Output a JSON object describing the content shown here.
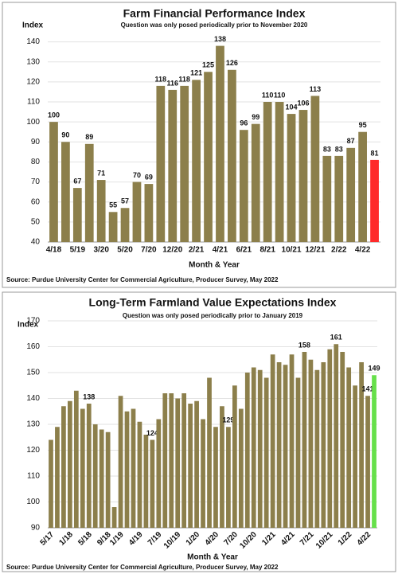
{
  "chart_data": [
    {
      "type": "bar",
      "title": "Farm Financial Performance Index",
      "subtitle": "Question was only posed periodically prior to November 2020",
      "y_label": "Index",
      "x_label": "Month & Year",
      "source": "Source: Purdue University Center for Commercial Agriculture, Producer Survey, May 2022",
      "categories": [
        "4/18",
        null,
        "5/19",
        null,
        "3/20",
        null,
        "5/20",
        null,
        "7/20",
        null,
        "12/20",
        null,
        "2/21",
        null,
        "4/21",
        null,
        "6/21",
        null,
        "8/21",
        null,
        "10/21",
        null,
        "12/21",
        null,
        "2/22",
        null,
        "4/22",
        null
      ],
      "values": [
        100,
        90,
        67,
        89,
        71,
        55,
        57,
        70,
        69,
        118,
        116,
        118,
        121,
        125,
        138,
        126,
        96,
        99,
        110,
        110,
        104,
        106,
        113,
        83,
        83,
        87,
        95,
        81
      ],
      "color": "#8c7f4b",
      "last_color": "#ff2a2a",
      "ylim": [
        40,
        145
      ],
      "yticks": [
        40,
        50,
        60,
        70,
        80,
        90,
        100,
        110,
        120,
        130,
        140
      ],
      "grid": true
    },
    {
      "type": "bar",
      "title": "Long-Term Farmland Value Expectations Index",
      "subtitle": "Question was only posed periodically prior to January 2019",
      "y_label": "Index",
      "x_label": "Month & Year",
      "source": "Source: Purdue University Center for Commercial Agriculture, Producer Survey, May 2022",
      "categories": [
        "5/17",
        null,
        null,
        "1/18",
        null,
        null,
        "5/18",
        null,
        null,
        "9/18",
        null,
        "1/19",
        null,
        null,
        "4/19",
        null,
        null,
        "7/19",
        null,
        null,
        "10/19",
        null,
        null,
        "1/20",
        null,
        null,
        "4/20",
        null,
        null,
        "7/20",
        null,
        null,
        "10/20",
        null,
        null,
        "1/21",
        null,
        null,
        "4/21",
        null,
        null,
        "7/21",
        null,
        null,
        "10/21",
        null,
        null,
        "1/22",
        null,
        null,
        "4/22",
        null
      ],
      "values": [
        124,
        129,
        137,
        139,
        143,
        136,
        138,
        130,
        128,
        127,
        98,
        141,
        135,
        136,
        131,
        126,
        124,
        132,
        142,
        142,
        140,
        142,
        138,
        139,
        132,
        148,
        129,
        137,
        129,
        145,
        136,
        150,
        152,
        151,
        148,
        157,
        154,
        153,
        157,
        148,
        158,
        155,
        151,
        154,
        159,
        161,
        158,
        152,
        145,
        154,
        141,
        149
      ],
      "value_labels": [
        null,
        null,
        null,
        null,
        null,
        null,
        "138",
        null,
        null,
        null,
        null,
        null,
        null,
        null,
        null,
        null,
        "124",
        null,
        null,
        null,
        null,
        null,
        null,
        null,
        null,
        null,
        null,
        null,
        "129",
        null,
        null,
        null,
        null,
        null,
        null,
        null,
        null,
        null,
        null,
        null,
        "158",
        null,
        null,
        null,
        null,
        "161",
        null,
        null,
        null,
        null,
        "141",
        "149"
      ],
      "color": "#8c7f4b",
      "last_color": "#66e04a",
      "ylim": [
        90,
        170
      ],
      "yticks": [
        90,
        100,
        110,
        120,
        130,
        140,
        150,
        160,
        170
      ],
      "grid": true
    }
  ]
}
